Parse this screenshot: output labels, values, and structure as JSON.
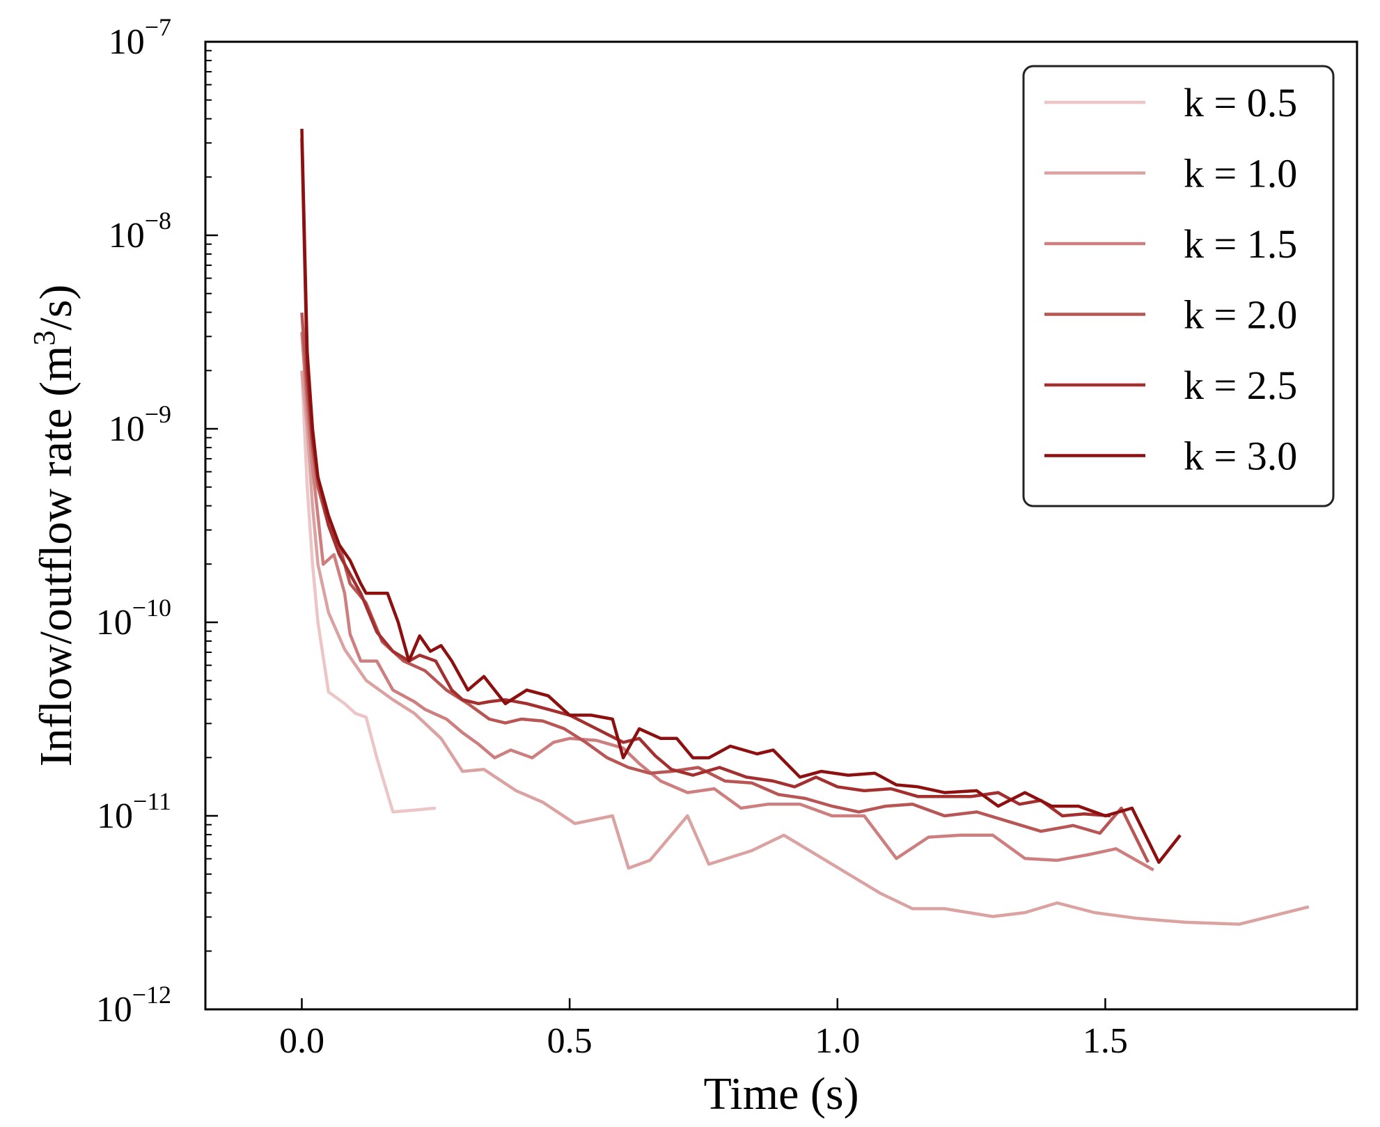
{
  "chart_data": {
    "type": "line",
    "title": "",
    "xlabel": "Time (s)",
    "ylabel": "Inflow/outflow rate (m^3/s)",
    "ylabel_parts": {
      "main": "Inflow/outflow rate (m",
      "sup": "3",
      "tail": "/s)"
    },
    "xscale": "linear",
    "yscale": "log",
    "xlim": [
      -0.18,
      1.97
    ],
    "ylim_exp": [
      -12,
      -7
    ],
    "x_ticks": [
      {
        "value": 0.0,
        "label": "0.0"
      },
      {
        "value": 0.5,
        "label": "0.5"
      },
      {
        "value": 1.0,
        "label": "1.0"
      },
      {
        "value": 1.5,
        "label": "1.5"
      }
    ],
    "y_ticks": [
      {
        "exp": -12,
        "base": "10",
        "sup": "−12"
      },
      {
        "exp": -11,
        "base": "10",
        "sup": "−11"
      },
      {
        "exp": -10,
        "base": "10",
        "sup": "−10"
      },
      {
        "exp": -9,
        "base": "10",
        "sup": "−9"
      },
      {
        "exp": -8,
        "base": "10",
        "sup": "−8"
      },
      {
        "exp": -7,
        "base": "10",
        "sup": "−7"
      }
    ],
    "legend_position": "top-right",
    "series": [
      {
        "name": "k = 0.5",
        "color": "#ecc6c6",
        "x": [
          0.0,
          0.01,
          0.02,
          0.03,
          0.05,
          0.08,
          0.1,
          0.12,
          0.14,
          0.17,
          0.21,
          0.25
        ],
        "y_exp": [
          -8.7,
          -9.3,
          -9.7,
          -10.0,
          -10.36,
          -10.42,
          -10.47,
          -10.49,
          -10.7,
          -10.98,
          -10.97,
          -10.96
        ]
      },
      {
        "name": "k = 1.0",
        "color": "#dba2a2",
        "x": [
          0.0,
          0.01,
          0.02,
          0.03,
          0.05,
          0.08,
          0.12,
          0.17,
          0.21,
          0.26,
          0.3,
          0.34,
          0.4,
          0.45,
          0.51,
          0.58,
          0.61,
          0.65,
          0.72,
          0.76,
          0.84,
          0.9,
          0.96,
          1.02,
          1.08,
          1.14,
          1.2,
          1.29,
          1.35,
          1.41,
          1.48,
          1.56,
          1.65,
          1.75,
          1.88
        ],
        "y_exp": [
          -8.7,
          -9.0,
          -9.4,
          -9.7,
          -9.95,
          -10.14,
          -10.3,
          -10.4,
          -10.47,
          -10.6,
          -10.77,
          -10.76,
          -10.87,
          -10.93,
          -11.04,
          -11.0,
          -11.27,
          -11.23,
          -11.0,
          -11.25,
          -11.18,
          -11.1,
          -11.2,
          -11.3,
          -11.4,
          -11.48,
          -11.48,
          -11.52,
          -11.5,
          -11.45,
          -11.5,
          -11.53,
          -11.55,
          -11.56,
          -11.47
        ]
      },
      {
        "name": "k = 1.5",
        "color": "#cd7e7e",
        "x": [
          0.0,
          0.01,
          0.02,
          0.03,
          0.04,
          0.06,
          0.08,
          0.09,
          0.11,
          0.14,
          0.17,
          0.21,
          0.23,
          0.27,
          0.3,
          0.33,
          0.36,
          0.39,
          0.43,
          0.47,
          0.5,
          0.55,
          0.6,
          0.63,
          0.67,
          0.72,
          0.77,
          0.82,
          0.87,
          0.93,
          0.99,
          1.05,
          1.11,
          1.17,
          1.23,
          1.29,
          1.35,
          1.41,
          1.47,
          1.52,
          1.59
        ],
        "y_exp": [
          -8.5,
          -8.9,
          -9.2,
          -9.45,
          -9.7,
          -9.65,
          -9.85,
          -10.06,
          -10.2,
          -10.2,
          -10.35,
          -10.41,
          -10.45,
          -10.5,
          -10.57,
          -10.63,
          -10.7,
          -10.66,
          -10.7,
          -10.62,
          -10.6,
          -10.61,
          -10.65,
          -10.73,
          -10.82,
          -10.88,
          -10.86,
          -10.96,
          -10.94,
          -10.94,
          -11.0,
          -11.0,
          -11.22,
          -11.11,
          -11.1,
          -11.1,
          -11.22,
          -11.23,
          -11.2,
          -11.17,
          -11.28
        ]
      },
      {
        "name": "k = 2.0",
        "color": "#b85555",
        "x": [
          0.0,
          0.01,
          0.02,
          0.03,
          0.05,
          0.07,
          0.09,
          0.12,
          0.15,
          0.19,
          0.23,
          0.27,
          0.31,
          0.35,
          0.38,
          0.41,
          0.45,
          0.49,
          0.53,
          0.57,
          0.61,
          0.65,
          0.69,
          0.74,
          0.79,
          0.84,
          0.89,
          0.94,
          0.99,
          1.04,
          1.09,
          1.14,
          1.2,
          1.26,
          1.32,
          1.38,
          1.44,
          1.49,
          1.53,
          1.58
        ],
        "y_exp": [
          -8.4,
          -8.8,
          -9.1,
          -9.3,
          -9.5,
          -9.6,
          -9.8,
          -9.9,
          -10.1,
          -10.2,
          -10.25,
          -10.35,
          -10.42,
          -10.5,
          -10.52,
          -10.5,
          -10.51,
          -10.55,
          -10.62,
          -10.7,
          -10.75,
          -10.78,
          -10.77,
          -10.75,
          -10.82,
          -10.83,
          -10.89,
          -10.91,
          -10.95,
          -10.98,
          -10.95,
          -10.94,
          -11.0,
          -10.98,
          -11.03,
          -11.08,
          -11.05,
          -11.09,
          -10.96,
          -11.24
        ]
      },
      {
        "name": "k = 2.5",
        "color": "#a32f2f",
        "x": [
          0.0,
          0.01,
          0.02,
          0.03,
          0.05,
          0.07,
          0.09,
          0.11,
          0.14,
          0.17,
          0.2,
          0.22,
          0.25,
          0.28,
          0.3,
          0.33,
          0.35,
          0.38,
          0.42,
          0.46,
          0.5,
          0.55,
          0.6,
          0.63,
          0.66,
          0.69,
          0.73,
          0.78,
          0.83,
          0.88,
          0.92,
          0.96,
          1.0,
          1.05,
          1.1,
          1.15,
          1.2,
          1.25,
          1.3,
          1.34,
          1.38,
          1.42,
          1.46,
          1.51
        ],
        "y_exp": [
          -7.5,
          -8.7,
          -9.05,
          -9.25,
          -9.5,
          -9.65,
          -9.75,
          -9.85,
          -10.05,
          -10.15,
          -10.2,
          -10.17,
          -10.2,
          -10.35,
          -10.4,
          -10.42,
          -10.41,
          -10.4,
          -10.42,
          -10.45,
          -10.48,
          -10.55,
          -10.62,
          -10.6,
          -10.69,
          -10.76,
          -10.79,
          -10.75,
          -10.8,
          -10.82,
          -10.85,
          -10.8,
          -10.85,
          -10.87,
          -10.86,
          -10.9,
          -10.9,
          -10.9,
          -10.88,
          -10.94,
          -10.92,
          -11.0,
          -10.99,
          -11.0
        ]
      },
      {
        "name": "k = 3.0",
        "color": "#8c1010",
        "x": [
          0.0,
          0.01,
          0.02,
          0.03,
          0.05,
          0.07,
          0.09,
          0.11,
          0.12,
          0.14,
          0.16,
          0.18,
          0.2,
          0.22,
          0.24,
          0.26,
          0.28,
          0.31,
          0.34,
          0.36,
          0.38,
          0.42,
          0.46,
          0.5,
          0.54,
          0.58,
          0.6,
          0.63,
          0.67,
          0.7,
          0.73,
          0.76,
          0.8,
          0.85,
          0.88,
          0.93,
          0.97,
          1.02,
          1.07,
          1.11,
          1.15,
          1.2,
          1.26,
          1.3,
          1.35,
          1.4,
          1.45,
          1.5,
          1.55,
          1.6,
          1.64
        ],
        "y_exp": [
          -7.45,
          -8.6,
          -9.0,
          -9.25,
          -9.45,
          -9.6,
          -9.68,
          -9.8,
          -9.85,
          -9.85,
          -9.85,
          -10.0,
          -10.2,
          -10.07,
          -10.15,
          -10.12,
          -10.2,
          -10.35,
          -10.28,
          -10.35,
          -10.42,
          -10.35,
          -10.38,
          -10.48,
          -10.48,
          -10.5,
          -10.7,
          -10.55,
          -10.6,
          -10.6,
          -10.7,
          -10.7,
          -10.64,
          -10.68,
          -10.66,
          -10.8,
          -10.77,
          -10.79,
          -10.78,
          -10.84,
          -10.85,
          -10.88,
          -10.87,
          -10.95,
          -10.88,
          -10.95,
          -10.95,
          -11.0,
          -10.96,
          -11.24,
          -11.1
        ]
      }
    ]
  }
}
